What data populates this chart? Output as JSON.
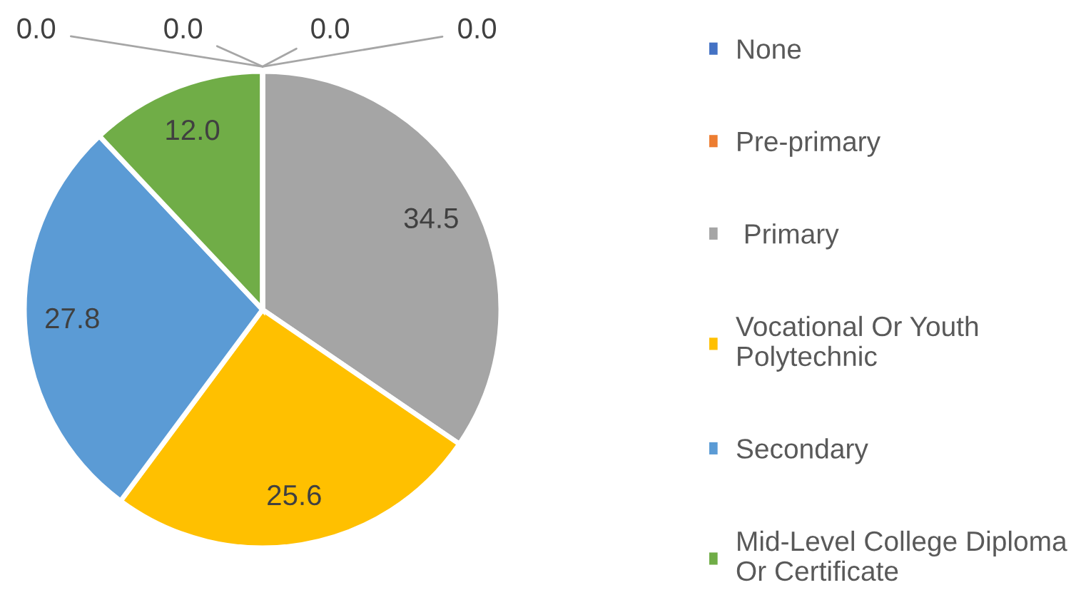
{
  "chart_data": {
    "type": "pie",
    "categories": [
      "None",
      "Pre-primary",
      " Primary",
      "Vocational Or Youth Polytechnic",
      "Secondary",
      "Mid-Level College Diploma Or Certificate",
      null,
      null
    ],
    "values": [
      0.0,
      0.0,
      34.5,
      25.6,
      27.8,
      12.0,
      0.0,
      0.0
    ],
    "value_labels": [
      "0.0",
      "0.0",
      "34.5",
      "25.6",
      "27.8",
      "12.0",
      "0.0",
      "0.0"
    ],
    "colors": [
      "#4472c4",
      "#ed7d31",
      "#a5a5a5",
      "#ffc000",
      "#5b9bd5",
      "#70ad47",
      null,
      null
    ],
    "legend": "right"
  }
}
